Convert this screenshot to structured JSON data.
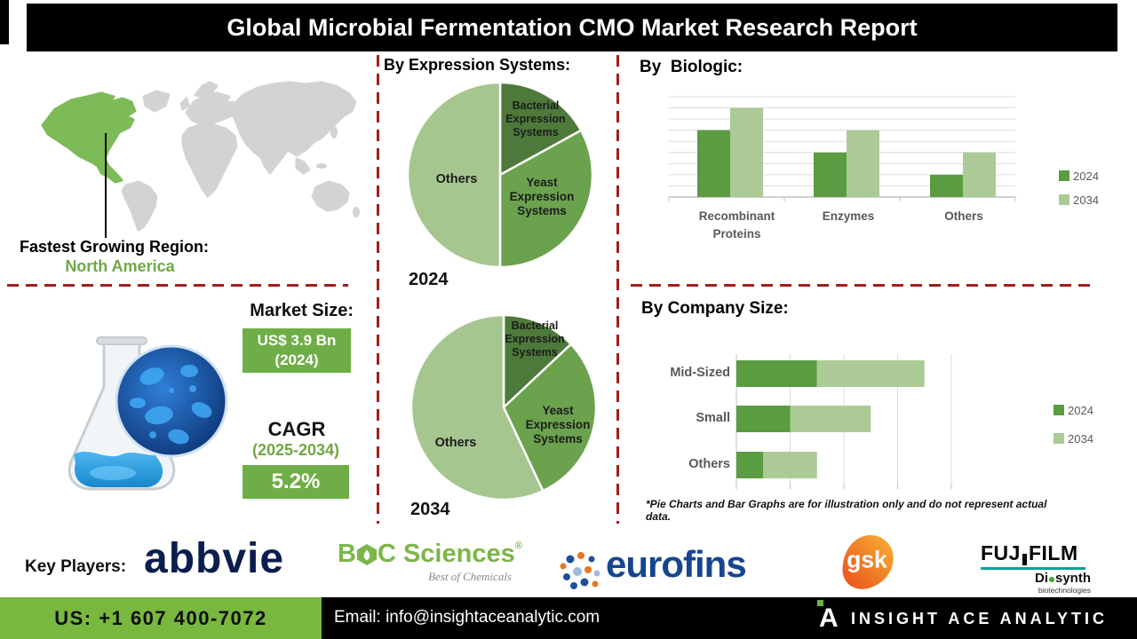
{
  "header": {
    "title": "Global Microbial Fermentation CMO Market Research Report"
  },
  "region": {
    "heading": "Fastest Growing Region:",
    "value": "North America"
  },
  "market": {
    "heading": "Market Size:",
    "value": "US$ 3.9 Bn",
    "value_year": "(2024)",
    "cagr_label": "CAGR",
    "cagr_period": "(2025-2034)",
    "cagr_value": "5.2%"
  },
  "sections": {
    "expression_heading": "By Expression Systems:"
  },
  "chart_data": [
    {
      "type": "pie",
      "year_label": "2024",
      "title": "By Expression Systems: 2024",
      "slices": [
        {
          "label": "Bacterial Expression Systems",
          "value": 17,
          "color": "#4D7A3A"
        },
        {
          "label": "Yeast Expression Systems",
          "value": 33,
          "color": "#6AA24D"
        },
        {
          "label": "Others",
          "value": 50,
          "color": "#A6C690"
        }
      ]
    },
    {
      "type": "pie",
      "year_label": "2034",
      "title": "By Expression Systems: 2034",
      "slices": [
        {
          "label": "Bacterial Expression Systems",
          "value": 13,
          "color": "#4D7A3A"
        },
        {
          "label": "Yeast Expression Systems",
          "value": 30,
          "color": "#6AA24D"
        },
        {
          "label": "Others",
          "value": 57,
          "color": "#A6C690"
        }
      ]
    },
    {
      "type": "bar",
      "title": "By  Biologic:",
      "categories": [
        "Recombinant Proteins",
        "Enzymes",
        "Others"
      ],
      "series": [
        {
          "name": "2024",
          "color": "#5B9B41",
          "values": [
            6,
            4,
            2
          ]
        },
        {
          "name": "2034",
          "color": "#ABCA96",
          "values": [
            8,
            6,
            4
          ]
        }
      ],
      "ylim": [
        0,
        9
      ],
      "grid": true,
      "legend_position": "right"
    },
    {
      "type": "stacked-hbar",
      "title": "By Company Size:",
      "categories": [
        "Mid-Sized",
        "Small",
        "Others"
      ],
      "series": [
        {
          "name": "2024",
          "color": "#5B9B41",
          "values": [
            1.5,
            1.0,
            0.5
          ]
        },
        {
          "name": "2034",
          "color": "#ABCA96",
          "values": [
            2.0,
            1.5,
            1.0
          ]
        }
      ],
      "xlim": [
        0,
        4
      ],
      "grid": true,
      "legend_position": "right",
      "footnote": "*Pie Charts and Bar Graphs are for illustration only and do not represent actual data."
    }
  ],
  "key_players": {
    "label": "Key Players:",
    "abbvie": "abbvie",
    "boc": {
      "b": "B",
      "c_sciences": "C Sciences",
      "reg": "®",
      "tagline": "Best of Chemicals"
    },
    "eurofins": "eurofins",
    "gsk": "gsk",
    "fujifilm": {
      "p1": "FUJ",
      "p2": "FILM",
      "sub_a": "Di",
      "sub_b": "synth",
      "sub_c": "biotechnologies"
    }
  },
  "footer": {
    "phone": "US: +1 607 400-7072",
    "email": "Email: info@insightaceanalytic.com",
    "brand_letter": "A",
    "brand": "INSIGHT ACE ANALYTIC"
  },
  "colors": {
    "pie_dark_green": "#4D7A3A",
    "pie_mid_green": "#6AA24D",
    "pie_light_green": "#A6C690",
    "bar_2024": "#5B9B41",
    "bar_2034": "#ABCA96",
    "accent_box_green": "#6FAE46",
    "text_green": "#6FA845",
    "map_green": "#7CBB57",
    "map_gray": "#D3D3D3",
    "dash_red": "#A01E1E",
    "footer_green": "#78B83E"
  }
}
